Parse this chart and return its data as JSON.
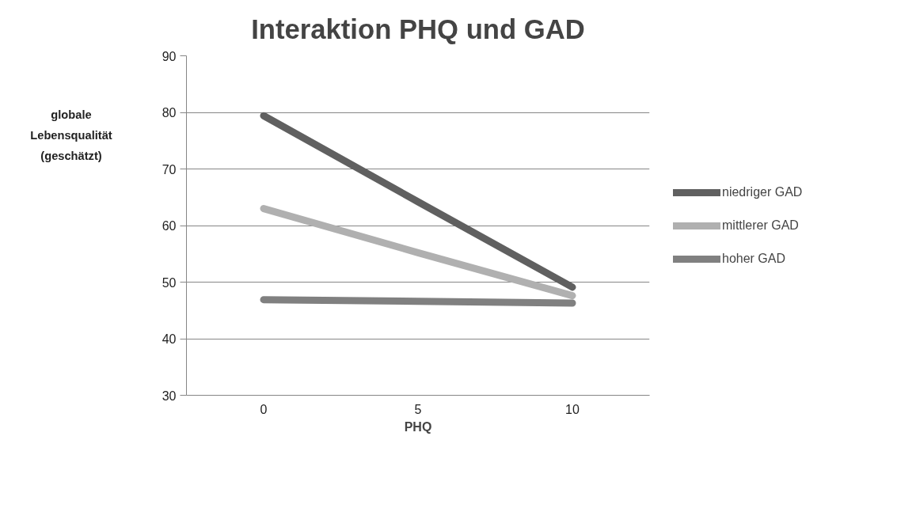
{
  "chart_data": {
    "type": "line",
    "title": "Interaktion PHQ und GAD",
    "xlabel": "PHQ",
    "ylabel": "globale\nLebensqualität\n(geschätzt)",
    "categories": [
      "0",
      "5",
      "10"
    ],
    "series": [
      {
        "name": "niedriger GAD",
        "color": "#606060",
        "values": [
          79.4,
          64.2,
          49.1
        ]
      },
      {
        "name": "mittlerer GAD",
        "color": "#b0b0b0",
        "values": [
          63.0,
          55.2,
          47.6
        ]
      },
      {
        "name": "hoher GAD",
        "color": "#808080",
        "values": [
          46.9,
          46.6,
          46.3
        ]
      }
    ],
    "ylim": [
      30,
      90
    ],
    "yticks": [
      30,
      40,
      50,
      60,
      70,
      80,
      90
    ],
    "grid": "y",
    "legend": "right",
    "marker": "none",
    "line_style": "solid"
  }
}
